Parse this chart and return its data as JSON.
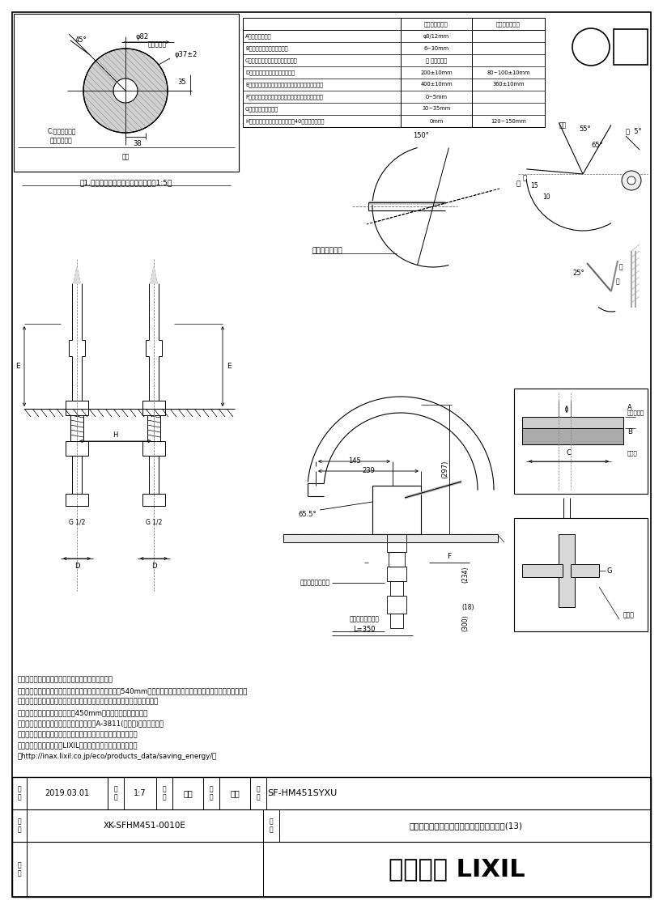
{
  "page_width": 8.19,
  "page_height": 11.23,
  "bg_color": "#ffffff",
  "lc": "#000000",
  "title_company": "株式会社 LIXIL",
  "product_code": "SF-HM451SYXU",
  "product_name": "ハンドシャワー付シングルレバー混合水栓(13)",
  "drawing_number": "XK-SFHM451-0010E",
  "date": "2019.03.01",
  "scale": "1:7",
  "maker": "釜山",
  "checker": "磯崎",
  "notes": [
    "・（　）内は、参考寸法。・止水栓は、別途手配。",
    "・水栓取付面からシンク下の底板（棚板）までの距離が540mm以上ないと、ホース収納時に底板（棚板）との干渉が",
    "　大きくなり、使用上問題はありませんが、ホース収納性が悪くなります。",
    "・施工には、水栓取付面上方に450mm以上の空間が必要です。",
    "・珪酸カルシウム板に対応するためには、A-3811(別売品)が必要です。",
    "・カウンター裏面の補強板は、木質系のボードとしてください。",
    "・節湯記号については、LIXILホームページを参照ください。",
    "（http://inax.lixil.co.jp/eco/products_data/saving_energy/）"
  ],
  "table_rows": [
    [
      "A：取付可能大径",
      "φ3/12mm",
      ""
    ],
    [
      "B：取付可能カウンター厚き",
      "6~30mm",
      ""
    ],
    [
      "C：裏面取付作業必要スペース寸法",
      "図 によす参照",
      ""
    ],
    [
      "D：取人・軸と水栓スペース寸法",
      "200±10mm",
      "80~100±10mm"
    ],
    [
      "E：入水中心から取人・軸部口上辺部中心までの寸法",
      "400±10mm",
      "360±10mm"
    ],
    [
      "F：入水中心から取人・軸部口上辺部中心までの寸法",
      "0~5mm",
      ""
    ],
    [
      "G：止水栓の接続寸法",
      "30~35mm",
      ""
    ],
    [
      "H：入水中心から取人・軸部左右40中心までの寸法",
      "0mm",
      "120~150mm"
    ]
  ]
}
